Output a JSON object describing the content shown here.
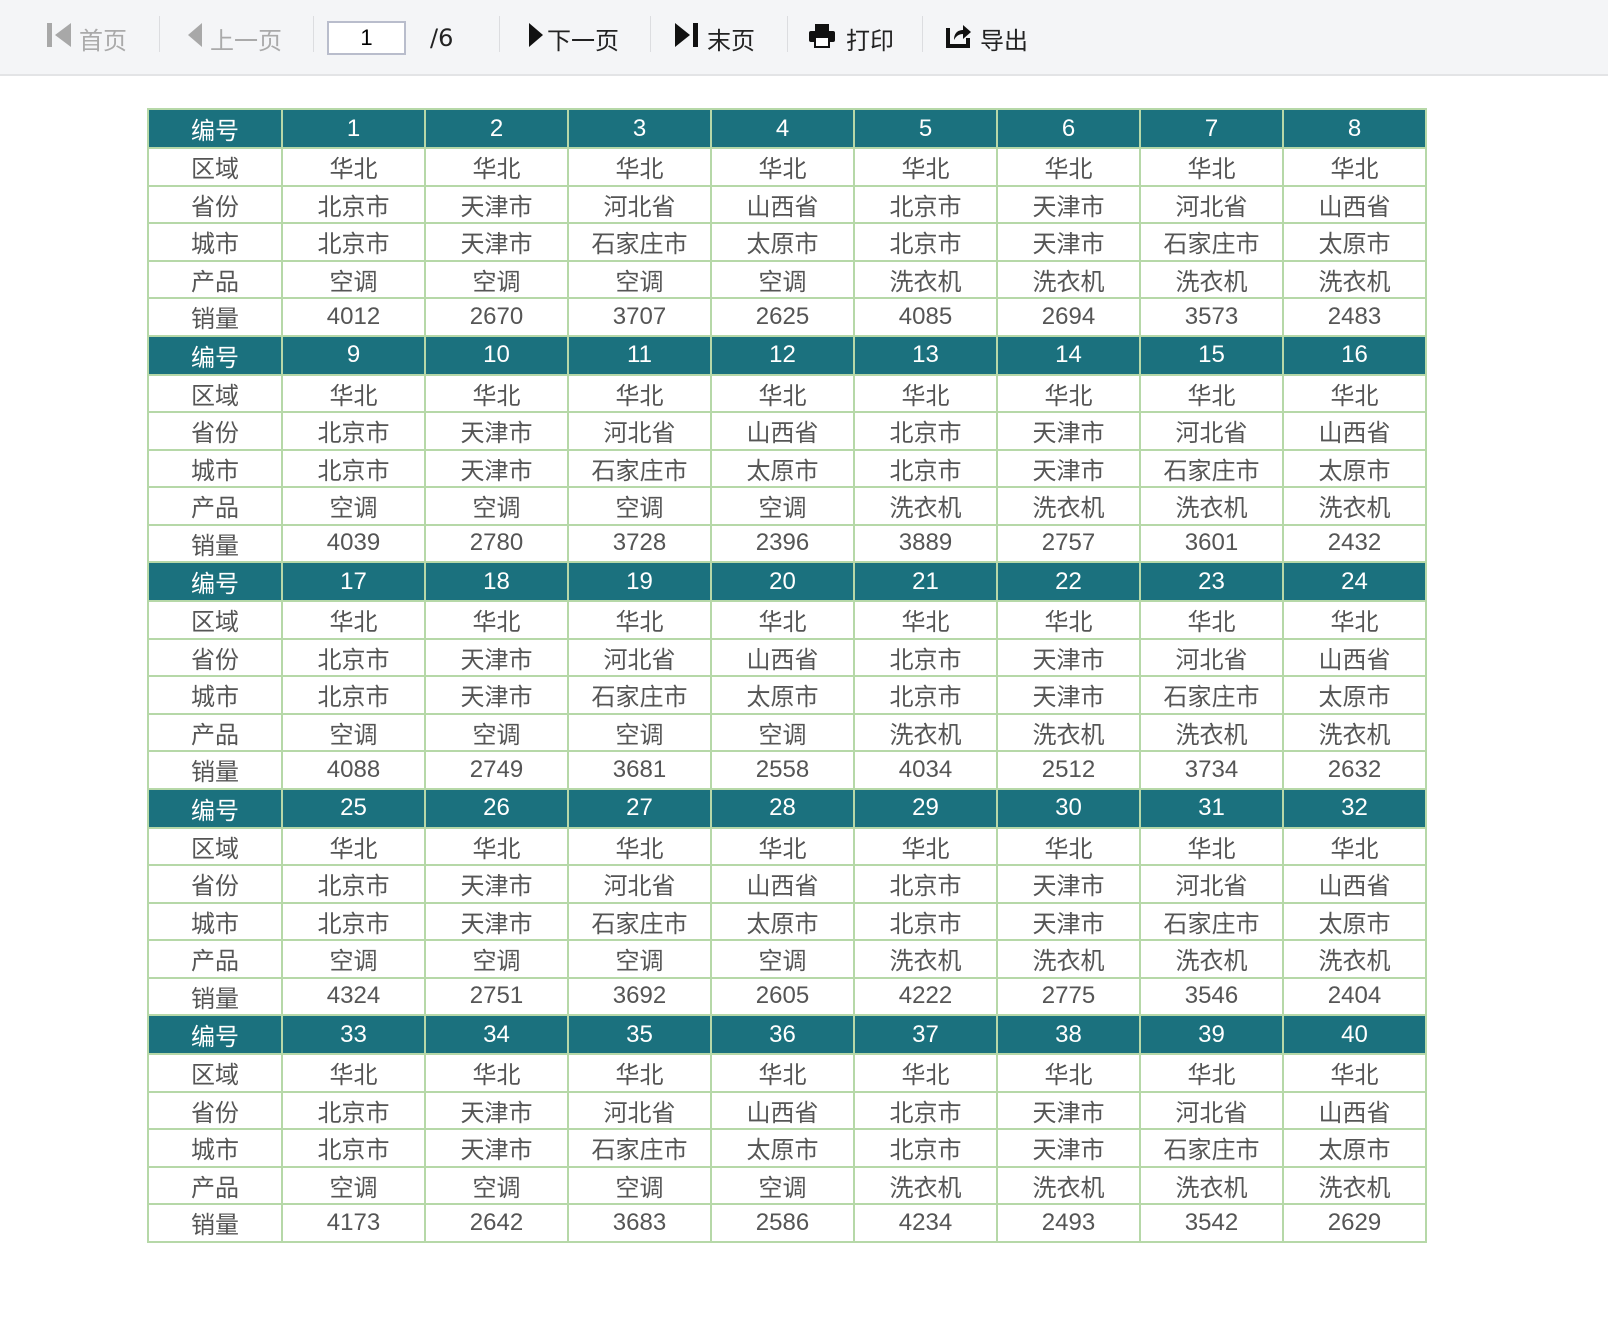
{
  "toolbar": {
    "first_label": "首页",
    "prev_label": "上一页",
    "page_value": "1",
    "total_pages": "/6",
    "next_label": "下一页",
    "last_label": "末页",
    "print_label": "打印",
    "export_label": "导出"
  },
  "colors": {
    "header_bg": "#1b717e",
    "border": "#b6d8a8",
    "text": "#555555"
  },
  "table": {
    "row_labels": [
      "编号",
      "区域",
      "省份",
      "城市",
      "产品",
      "销量"
    ],
    "blocks": [
      {
        "ids": [
          "1",
          "2",
          "3",
          "4",
          "5",
          "6",
          "7",
          "8"
        ],
        "region": [
          "华北",
          "华北",
          "华北",
          "华北",
          "华北",
          "华北",
          "华北",
          "华北"
        ],
        "province": [
          "北京市",
          "天津市",
          "河北省",
          "山西省",
          "北京市",
          "天津市",
          "河北省",
          "山西省"
        ],
        "city": [
          "北京市",
          "天津市",
          "石家庄市",
          "太原市",
          "北京市",
          "天津市",
          "石家庄市",
          "太原市"
        ],
        "product": [
          "空调",
          "空调",
          "空调",
          "空调",
          "洗衣机",
          "洗衣机",
          "洗衣机",
          "洗衣机"
        ],
        "sales": [
          "4012",
          "2670",
          "3707",
          "2625",
          "4085",
          "2694",
          "3573",
          "2483"
        ]
      },
      {
        "ids": [
          "9",
          "10",
          "11",
          "12",
          "13",
          "14",
          "15",
          "16"
        ],
        "region": [
          "华北",
          "华北",
          "华北",
          "华北",
          "华北",
          "华北",
          "华北",
          "华北"
        ],
        "province": [
          "北京市",
          "天津市",
          "河北省",
          "山西省",
          "北京市",
          "天津市",
          "河北省",
          "山西省"
        ],
        "city": [
          "北京市",
          "天津市",
          "石家庄市",
          "太原市",
          "北京市",
          "天津市",
          "石家庄市",
          "太原市"
        ],
        "product": [
          "空调",
          "空调",
          "空调",
          "空调",
          "洗衣机",
          "洗衣机",
          "洗衣机",
          "洗衣机"
        ],
        "sales": [
          "4039",
          "2780",
          "3728",
          "2396",
          "3889",
          "2757",
          "3601",
          "2432"
        ]
      },
      {
        "ids": [
          "17",
          "18",
          "19",
          "20",
          "21",
          "22",
          "23",
          "24"
        ],
        "region": [
          "华北",
          "华北",
          "华北",
          "华北",
          "华北",
          "华北",
          "华北",
          "华北"
        ],
        "province": [
          "北京市",
          "天津市",
          "河北省",
          "山西省",
          "北京市",
          "天津市",
          "河北省",
          "山西省"
        ],
        "city": [
          "北京市",
          "天津市",
          "石家庄市",
          "太原市",
          "北京市",
          "天津市",
          "石家庄市",
          "太原市"
        ],
        "product": [
          "空调",
          "空调",
          "空调",
          "空调",
          "洗衣机",
          "洗衣机",
          "洗衣机",
          "洗衣机"
        ],
        "sales": [
          "4088",
          "2749",
          "3681",
          "2558",
          "4034",
          "2512",
          "3734",
          "2632"
        ]
      },
      {
        "ids": [
          "25",
          "26",
          "27",
          "28",
          "29",
          "30",
          "31",
          "32"
        ],
        "region": [
          "华北",
          "华北",
          "华北",
          "华北",
          "华北",
          "华北",
          "华北",
          "华北"
        ],
        "province": [
          "北京市",
          "天津市",
          "河北省",
          "山西省",
          "北京市",
          "天津市",
          "河北省",
          "山西省"
        ],
        "city": [
          "北京市",
          "天津市",
          "石家庄市",
          "太原市",
          "北京市",
          "天津市",
          "石家庄市",
          "太原市"
        ],
        "product": [
          "空调",
          "空调",
          "空调",
          "空调",
          "洗衣机",
          "洗衣机",
          "洗衣机",
          "洗衣机"
        ],
        "sales": [
          "4324",
          "2751",
          "3692",
          "2605",
          "4222",
          "2775",
          "3546",
          "2404"
        ]
      },
      {
        "ids": [
          "33",
          "34",
          "35",
          "36",
          "37",
          "38",
          "39",
          "40"
        ],
        "region": [
          "华北",
          "华北",
          "华北",
          "华北",
          "华北",
          "华北",
          "华北",
          "华北"
        ],
        "province": [
          "北京市",
          "天津市",
          "河北省",
          "山西省",
          "北京市",
          "天津市",
          "河北省",
          "山西省"
        ],
        "city": [
          "北京市",
          "天津市",
          "石家庄市",
          "太原市",
          "北京市",
          "天津市",
          "石家庄市",
          "太原市"
        ],
        "product": [
          "空调",
          "空调",
          "空调",
          "空调",
          "洗衣机",
          "洗衣机",
          "洗衣机",
          "洗衣机"
        ],
        "sales": [
          "4173",
          "2642",
          "3683",
          "2586",
          "4234",
          "2493",
          "3542",
          "2629"
        ]
      }
    ]
  }
}
